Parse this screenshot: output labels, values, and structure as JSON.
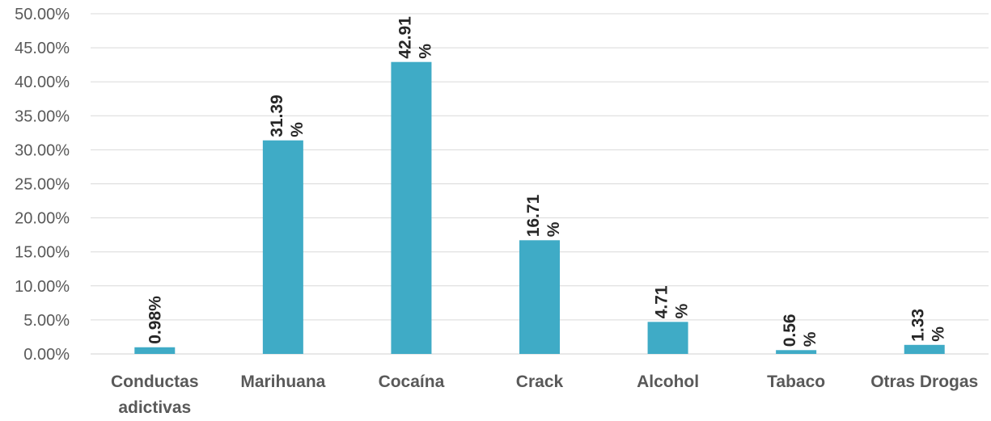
{
  "chart_data": {
    "type": "bar",
    "title": "",
    "xlabel": "",
    "ylabel": "",
    "categories": [
      [
        "Conductas",
        "adictivas"
      ],
      [
        "Marihuana"
      ],
      [
        "Cocaína"
      ],
      [
        "Crack"
      ],
      [
        "Alcohol"
      ],
      [
        "Tabaco"
      ],
      [
        "Otras Drogas"
      ]
    ],
    "values": [
      0.98,
      31.39,
      42.91,
      16.71,
      4.71,
      0.56,
      1.33
    ],
    "data_labels": [
      [
        "0.98%"
      ],
      [
        "31.39",
        "%"
      ],
      [
        "42.91",
        "%"
      ],
      [
        "16.71",
        "%"
      ],
      [
        "4.71",
        "%"
      ],
      [
        "0.56",
        "%"
      ],
      [
        "1.33",
        "%"
      ]
    ],
    "ylim": [
      0,
      50
    ],
    "yticks": [
      0,
      5,
      10,
      15,
      20,
      25,
      30,
      35,
      40,
      45,
      50
    ],
    "ytick_labels": [
      "0.00%",
      "5.00%",
      "10.00%",
      "15.00%",
      "20.00%",
      "25.00%",
      "30.00%",
      "35.00%",
      "40.00%",
      "45.00%",
      "50.00%"
    ],
    "grid": true,
    "legend": "none",
    "colors": {
      "bar": "#3FABC6",
      "grid": "#D9D9D9",
      "tick_text": "#595959",
      "label_text": "#262626"
    }
  }
}
